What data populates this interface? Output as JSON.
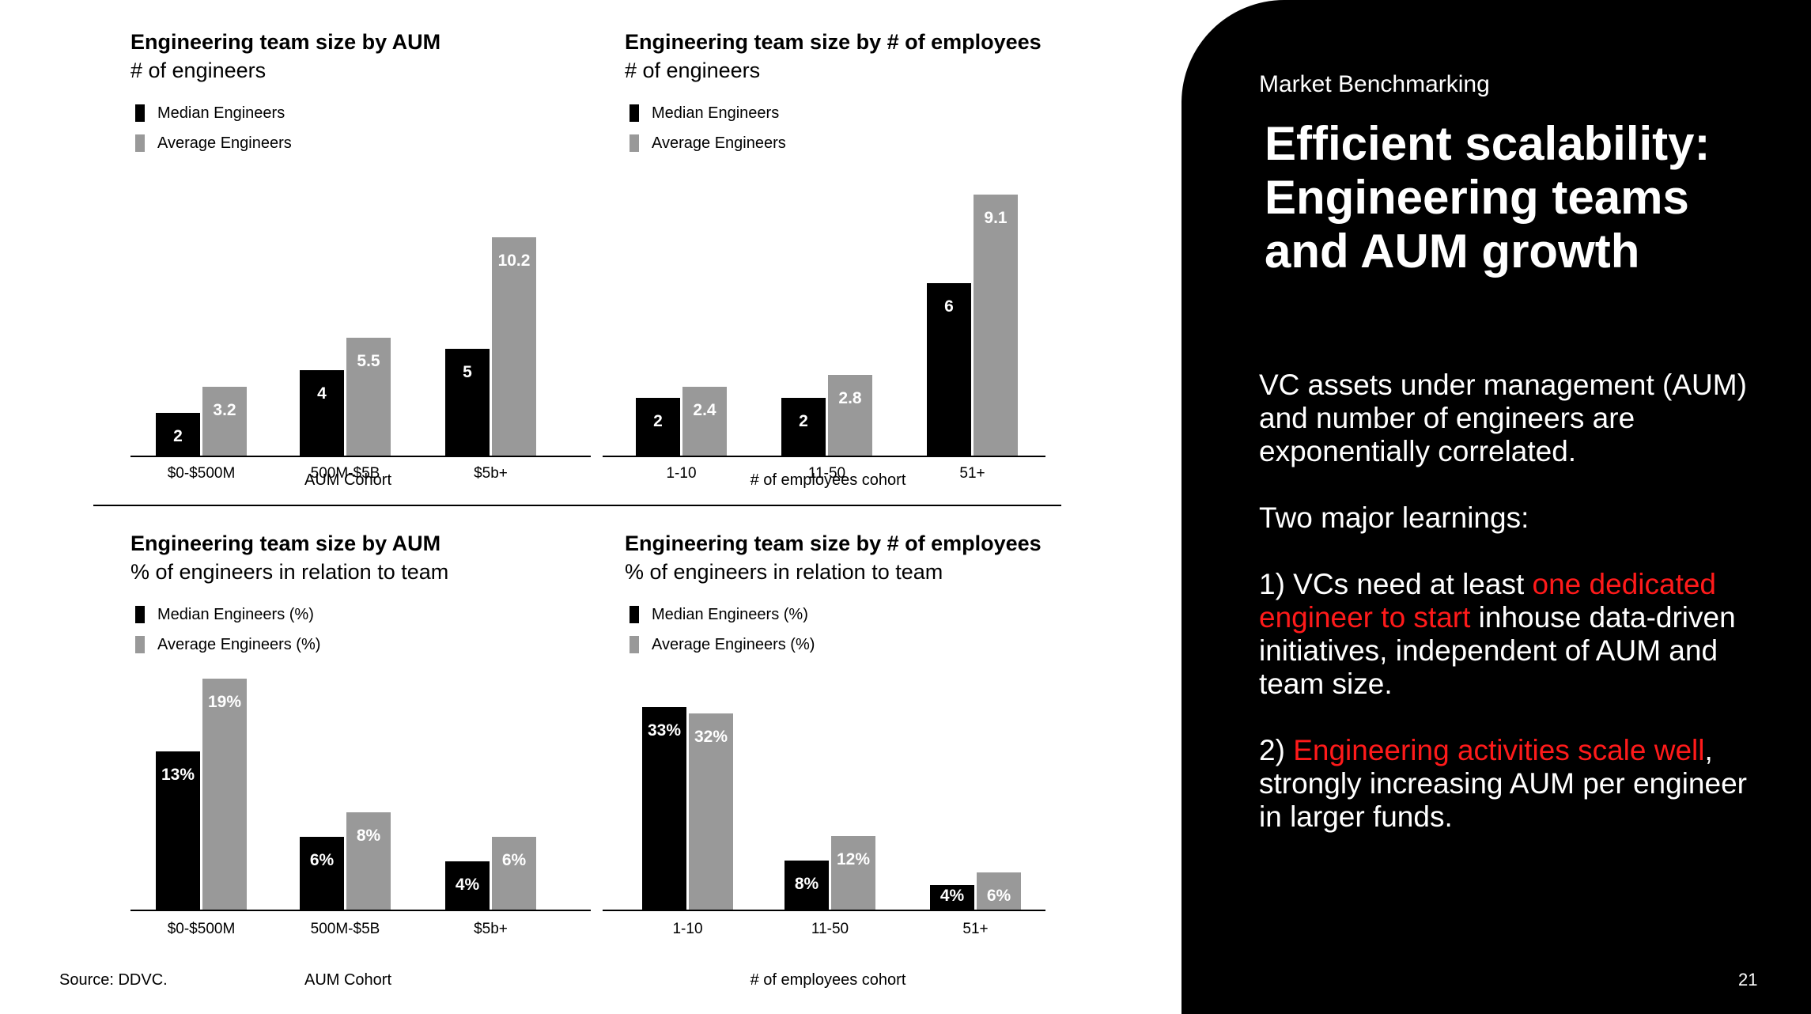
{
  "charts": [
    {
      "title": "Engineering team size by AUM",
      "subtitle": "# of engineers",
      "legend": [
        "Median Engineers",
        "Average Engineers"
      ],
      "xlabel": "AUM Cohort",
      "chart_data": {
        "type": "bar",
        "categories": [
          "$0-$500M",
          "500M-$5B",
          "$5b+"
        ],
        "series": [
          {
            "name": "Median Engineers",
            "values": [
              2,
              4,
              5
            ],
            "labels": [
              "2",
              "4",
              "5"
            ]
          },
          {
            "name": "Average Engineers",
            "values": [
              3.2,
              5.5,
              10.2
            ],
            "labels": [
              "3.2",
              "5.5",
              "10.2"
            ]
          }
        ],
        "ylim": [
          0,
          11
        ]
      }
    },
    {
      "title": "Engineering team size by # of employees",
      "subtitle": "# of engineers",
      "legend": [
        "Median Engineers",
        "Average Engineers"
      ],
      "xlabel": "# of employees cohort",
      "chart_data": {
        "type": "bar",
        "categories": [
          "1-10",
          "11-50",
          "51+"
        ],
        "series": [
          {
            "name": "Median Engineers",
            "values": [
              2,
              2,
              6
            ],
            "labels": [
              "2",
              "2",
              "6"
            ]
          },
          {
            "name": "Average Engineers",
            "values": [
              2.4,
              2.8,
              9.1
            ],
            "labels": [
              "2.4",
              "2.8",
              "9.1"
            ]
          }
        ],
        "ylim": [
          0,
          9.1
        ]
      }
    },
    {
      "title": "Engineering team size by AUM",
      "subtitle": "% of engineers in relation to team",
      "legend": [
        "Median Engineers (%)",
        "Average Engineers (%)"
      ],
      "xlabel": "AUM Cohort",
      "chart_data": {
        "type": "bar",
        "categories": [
          "$0-$500M",
          "500M-$5B",
          "$5b+"
        ],
        "series": [
          {
            "name": "Median Engineers (%)",
            "values": [
              13,
              6,
              4
            ],
            "labels": [
              "13%",
              "6%",
              "4%"
            ]
          },
          {
            "name": "Average Engineers (%)",
            "values": [
              19,
              8,
              6
            ],
            "labels": [
              "19%",
              "8%",
              "6%"
            ]
          }
        ],
        "ylim": [
          0,
          19
        ]
      }
    },
    {
      "title": "Engineering team size by # of employees",
      "subtitle": "% of engineers in relation to team",
      "legend": [
        "Median Engineers (%)",
        "Average Engineers (%)"
      ],
      "xlabel": "# of employees cohort",
      "chart_data": {
        "type": "bar",
        "categories": [
          "1-10",
          "11-50",
          "51+"
        ],
        "series": [
          {
            "name": "Median Engineers (%)",
            "values": [
              33,
              8,
              4
            ],
            "labels": [
              "33%",
              "8%",
              "4%"
            ]
          },
          {
            "name": "Average Engineers (%)",
            "values": [
              32,
              12,
              6
            ],
            "labels": [
              "32%",
              "12%",
              "6%"
            ]
          }
        ],
        "ylim": [
          0,
          33
        ]
      }
    }
  ],
  "source": "Source: DDVC.",
  "panel": {
    "kicker": "Market Benchmarking",
    "headline": "Efficient scalability: Engineering teams and AUM growth",
    "para1": "VC assets under management (AUM) and number of engineers are exponentially correlated.",
    "para2": "Two major learnings:",
    "p3_pre": "1) VCs need at least ",
    "p3_red": "one dedicated engineer to start",
    "p3_post": " inhouse data-driven initiatives, independent of AUM and team size.",
    "p4_pre": "2) ",
    "p4_red": "Engineering activities scale well",
    "p4_post": ", strongly increasing AUM per engineer in larger funds.",
    "page_number": "21"
  },
  "colors": {
    "median": "#000000",
    "average": "#999999",
    "accent_red": "#ff1a1a"
  }
}
